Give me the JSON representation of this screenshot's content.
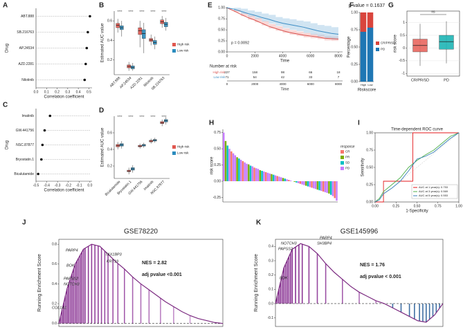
{
  "chart_data": [
    {
      "panel": "A",
      "type": "lollipop",
      "categories": [
        "ABT.888",
        "SB.216763",
        "AP.24534",
        "AZD.2281",
        "Nilotinib"
      ],
      "values": [
        0.51,
        0.49,
        0.48,
        0.47,
        0.46
      ],
      "xlim": [
        0,
        0.53
      ],
      "xticks": [
        {
          "value": 0,
          "label": "0.0"
        },
        0.1,
        0.2,
        0.3,
        0.4,
        0.5
      ],
      "xlabel": "Correlation coefficient",
      "ylabel": "Drug"
    },
    {
      "panel": "B",
      "type": "box",
      "categories": [
        "ABT.888",
        "AP.24534",
        "AZD.2281",
        "Nilotinib",
        "SB.216763"
      ],
      "series": [
        {
          "name": "High risk",
          "color": "#e0574f",
          "boxes": [
            [
              0.48,
              0.53,
              0.555,
              0.575,
              0.62
            ],
            [
              0.09,
              0.12,
              0.135,
              0.15,
              0.18
            ],
            [
              0.33,
              0.46,
              0.5,
              0.53,
              0.6
            ],
            [
              0.35,
              0.39,
              0.405,
              0.42,
              0.46
            ],
            [
              0.53,
              0.57,
              0.59,
              0.61,
              0.65
            ]
          ]
        },
        {
          "name": "Low risk",
          "color": "#2b8cbe",
          "boxes": [
            [
              0.44,
              0.51,
              0.53,
              0.55,
              0.6
            ],
            [
              0.09,
              0.11,
              0.125,
              0.14,
              0.17
            ],
            [
              0.27,
              0.42,
              0.47,
              0.51,
              0.58
            ],
            [
              0.31,
              0.36,
              0.38,
              0.4,
              0.44
            ],
            [
              0.5,
              0.54,
              0.565,
              0.585,
              0.63
            ]
          ]
        }
      ],
      "ylim": [
        0.05,
        0.7
      ],
      "yticks": [
        0.2,
        0.4,
        0.6
      ],
      "ylabel": "Estimated AUC value",
      "annotations": [
        "****",
        "****",
        "****",
        "****",
        "****"
      ]
    },
    {
      "panel": "C",
      "type": "lollipop",
      "categories": [
        "Imatinib",
        "GW.441756",
        "NSC.87877",
        "Bryostatin.1",
        "Bicalutamide"
      ],
      "values": [
        -0.37,
        -0.42,
        -0.44,
        -0.45,
        -0.48
      ],
      "xlim": [
        -0.5,
        0.02
      ],
      "xticks": [
        -0.5,
        -0.4,
        -0.3,
        -0.2,
        -0.1,
        {
          "value": 0,
          "label": "0.0"
        }
      ],
      "xlabel": "Correlation coefficient",
      "ylabel": "Drug"
    },
    {
      "panel": "D",
      "type": "box",
      "categories": [
        "Bicalutamide",
        "Bryostatin.1",
        "GW.441756",
        "Imatinib",
        "NSC.87877"
      ],
      "series": [
        {
          "name": "High risk",
          "color": "#e0574f",
          "boxes": [
            [
              0.4,
              0.43,
              0.445,
              0.46,
              0.49
            ],
            [
              0.1,
              0.13,
              0.14,
              0.15,
              0.18
            ],
            [
              0.41,
              0.43,
              0.44,
              0.45,
              0.47
            ],
            [
              0.47,
              0.49,
              0.5,
              0.51,
              0.53
            ],
            [
              0.68,
              0.71,
              0.72,
              0.735,
              0.76
            ]
          ]
        },
        {
          "name": "Low risk",
          "color": "#2b8cbe",
          "boxes": [
            [
              0.41,
              0.44,
              0.455,
              0.47,
              0.5
            ],
            [
              0.12,
              0.15,
              0.165,
              0.18,
              0.21
            ],
            [
              0.42,
              0.44,
              0.45,
              0.46,
              0.48
            ],
            [
              0.48,
              0.5,
              0.51,
              0.52,
              0.54
            ],
            [
              0.7,
              0.73,
              0.745,
              0.76,
              0.79
            ]
          ]
        }
      ],
      "ylim": [
        0.05,
        0.8
      ],
      "yticks": [
        0.2,
        0.4,
        0.6
      ],
      "ylabel": "Estimated AUC value",
      "annotations": [
        "****",
        "****",
        "****",
        "****",
        "****"
      ]
    },
    {
      "panel": "E",
      "type": "km",
      "x": [
        0,
        500,
        1000,
        1500,
        2000,
        2500,
        3000,
        3500,
        4000,
        4500,
        5000,
        5500,
        6000,
        6500,
        7000,
        7500,
        8000
      ],
      "series": [
        {
          "name": "High risk",
          "color": "#d9534f",
          "band": "#f4b6b4",
          "values": [
            1,
            0.93,
            0.85,
            0.78,
            0.72,
            0.65,
            0.58,
            0.53,
            0.48,
            0.44,
            0.41,
            0.38,
            0.36,
            0.34,
            0.31,
            0.3,
            0.29
          ],
          "lower": [
            1,
            0.9,
            0.81,
            0.73,
            0.67,
            0.6,
            0.53,
            0.48,
            0.43,
            0.39,
            0.36,
            0.33,
            0.31,
            0.29,
            0.26,
            0.25,
            0.24
          ],
          "upper": [
            1,
            0.96,
            0.89,
            0.83,
            0.77,
            0.7,
            0.63,
            0.58,
            0.53,
            0.49,
            0.46,
            0.43,
            0.41,
            0.39,
            0.36,
            0.35,
            0.34
          ]
        },
        {
          "name": "Low risk",
          "color": "#3d8dc4",
          "band": "#a9cde8",
          "values": [
            1,
            0.97,
            0.92,
            0.87,
            0.83,
            0.78,
            0.74,
            0.69,
            0.65,
            0.62,
            0.59,
            0.56,
            0.52,
            0.48,
            0.45,
            0.42,
            0.4
          ],
          "lower": [
            1,
            0.93,
            0.86,
            0.8,
            0.75,
            0.69,
            0.64,
            0.59,
            0.54,
            0.5,
            0.47,
            0.43,
            0.39,
            0.35,
            0.31,
            0.28,
            0.25
          ],
          "upper": [
            1,
            1,
            0.98,
            0.94,
            0.91,
            0.87,
            0.84,
            0.79,
            0.76,
            0.74,
            0.71,
            0.69,
            0.65,
            0.61,
            0.59,
            0.56,
            0.55
          ]
        }
      ],
      "xlim": [
        0,
        8300
      ],
      "ylim": [
        0,
        1.02
      ],
      "xticks": [
        0,
        2000,
        4000,
        6000,
        8000
      ],
      "yticks": [
        {
          "value": 0,
          "label": "0.00"
        },
        0.25,
        {
          "value": 0.5,
          "label": "0.50"
        },
        0.75,
        {
          "value": 1,
          "label": "1.00"
        }
      ],
      "xlabel": "Time",
      "annotation": "p = 0.0092",
      "risk_table": {
        "title": "Number at risk",
        "rows": [
          {
            "name": "High risk",
            "counts": [
              "227",
              "158",
              "98",
              "66",
              "18"
            ]
          },
          {
            "name": "Low risk",
            "counts": [
              "71",
              "54",
              "42",
              "33",
              "7"
            ]
          }
        ]
      }
    },
    {
      "panel": "F",
      "type": "stacked",
      "title": "p-value = 0.1637",
      "categories": [
        "High",
        "Low"
      ],
      "series": [
        {
          "name": "CR/PR/SD",
          "color": "#d9453d",
          "values": [
            0.28,
            0.22
          ]
        },
        {
          "name": "PD",
          "color": "#1f77b4",
          "values": [
            0.72,
            0.78
          ]
        }
      ],
      "ylim": [
        0,
        1
      ],
      "yticks": [
        {
          "value": 0,
          "label": "0.00"
        },
        0.25,
        {
          "value": 0.5,
          "label": "0.50"
        },
        0.75,
        {
          "value": 1,
          "label": "1.00"
        }
      ],
      "xlabel": "Riskscore",
      "ylabel": "Percentage"
    },
    {
      "panel": "G",
      "type": "box",
      "categories": [
        "CR/PR/SD",
        "PD"
      ],
      "colors": [
        "#e8675f",
        "#1fb5b5"
      ],
      "boxes": [
        [
          -0.7,
          -0.15,
          0.1,
          0.35,
          0.95
        ],
        [
          -0.6,
          -0.05,
          0.25,
          0.5,
          1.05
        ]
      ],
      "ylim": [
        -1.1,
        1.45
      ],
      "yticks": [
        -1,
        -0.5,
        0,
        0.5,
        1
      ],
      "ylabel": "risk score",
      "annotations": [
        "ns"
      ]
    },
    {
      "panel": "H",
      "type": "bar",
      "values": [
        0.75,
        0.62,
        0.55,
        0.5,
        0.46,
        0.43,
        0.4,
        0.37,
        0.35,
        0.33,
        0.31,
        0.29,
        0.27,
        0.26,
        0.24,
        0.23,
        0.21,
        0.2,
        0.19,
        0.17,
        0.16,
        0.15,
        0.14,
        0.13,
        0.12,
        0.11,
        0.1,
        0.09,
        0.08,
        0.07,
        0.06,
        0.05,
        0.04,
        0.03,
        0.02,
        0.01,
        0,
        -0.01,
        -0.02,
        -0.03,
        -0.04,
        -0.05,
        -0.06,
        -0.07,
        -0.08,
        -0.09,
        -0.1,
        -0.11,
        -0.12,
        -0.13,
        -0.14,
        -0.15,
        -0.16,
        -0.17,
        -0.18,
        -0.19,
        -0.21,
        -0.23,
        -0.26,
        -0.3
      ],
      "response": [
        "PD",
        "PR",
        "SD",
        "PD",
        "CR",
        "PD",
        "PD",
        "PR",
        "SD",
        "PD",
        "CR",
        "PD",
        "PD",
        "PR",
        "SD",
        "PD",
        "CR",
        "PD",
        "PD",
        "PR",
        "SD",
        "PD",
        "CR",
        "PD",
        "PD",
        "PR",
        "SD",
        "PD",
        "CR",
        "PD",
        "PD",
        "PR",
        "SD",
        "PD",
        "CR",
        "PD",
        "PD",
        "PR",
        "SD",
        "PD",
        "CR",
        "PD",
        "PD",
        "PR",
        "SD",
        "PD",
        "CR",
        "PD",
        "PD",
        "PR",
        "SD",
        "PD",
        "CR",
        "PD",
        "PD",
        "PR",
        "SD",
        "PD",
        "CR",
        "PD"
      ],
      "legend_title": "response",
      "responses": [
        "CR",
        "PR",
        "SD",
        "PD"
      ],
      "colors": [
        "#f8766d",
        "#7cae00",
        "#00bfc4",
        "#c77cff"
      ],
      "ylim": [
        -0.32,
        0.8
      ],
      "yticks": [
        -0.25,
        {
          "value": 0,
          "label": "0.00"
        },
        0.25,
        {
          "value": 0.5,
          "label": "0.50"
        },
        0.75
      ],
      "ylabel": "risk score"
    },
    {
      "panel": "I",
      "type": "roc",
      "title": "Time-dependent ROC curve",
      "xlabel": "1-Specificity",
      "ylabel": "Sensitivity",
      "xlim": [
        0,
        1
      ],
      "ylim": [
        0,
        1
      ],
      "xticks": [
        {
          "value": 0,
          "label": "0.00"
        },
        0.25,
        {
          "value": 0.5,
          "label": "0.50"
        },
        0.75,
        {
          "value": 1,
          "label": "1.00"
        }
      ],
      "yticks": [
        {
          "value": 0,
          "label": "0.00"
        },
        0.25,
        {
          "value": 0.5,
          "label": "0.50"
        },
        0.75,
        {
          "value": 1,
          "label": "1.00"
        }
      ],
      "series": [
        {
          "name": "AUC at 1 year(s): 0.753",
          "color": "#e41a1c",
          "x": [
            0,
            0.1,
            0.1,
            0.45,
            0.45,
            1
          ],
          "y": [
            0,
            0,
            0.3,
            0.3,
            1,
            1
          ]
        },
        {
          "name": "AUC at 3 year(s): 0.569",
          "color": "#4daf4a",
          "x": [
            0,
            0.05,
            0.1,
            0.2,
            0.3,
            0.4,
            0.5,
            0.6,
            0.7,
            0.8,
            0.9,
            1
          ],
          "y": [
            0,
            0.05,
            0.15,
            0.25,
            0.35,
            0.5,
            0.6,
            0.68,
            0.75,
            0.85,
            0.95,
            1
          ]
        },
        {
          "name": "AUC at 5 year(s): 0.553",
          "color": "#377eb8",
          "x": [
            0,
            0.05,
            0.1,
            0.2,
            0.3,
            0.4,
            0.5,
            0.6,
            0.7,
            0.8,
            0.9,
            1
          ],
          "y": [
            0,
            0.03,
            0.12,
            0.2,
            0.3,
            0.45,
            0.62,
            0.66,
            0.72,
            0.82,
            0.92,
            1
          ]
        }
      ]
    },
    {
      "panel": "J",
      "type": "gsea",
      "title": "GSE78220",
      "ylabel": "Running Enrichment Score",
      "nes": "NES = 2.82",
      "padj": "adj pvalue <0.001",
      "genes": [
        "PARP4",
        "TAX1BP3",
        "BOK",
        "KRT19",
        "PAPSS2",
        "NOTCH3",
        "COL1A1"
      ],
      "x": [
        0,
        5,
        10,
        15,
        20,
        25,
        30,
        35,
        40,
        45,
        50,
        55,
        60,
        65,
        70,
        75,
        80,
        85,
        90,
        95,
        100
      ],
      "values": [
        0,
        0.35,
        0.6,
        0.75,
        0.8,
        0.78,
        0.7,
        0.62,
        0.55,
        0.47,
        0.4,
        0.34,
        0.28,
        0.22,
        0.17,
        0.12,
        0.08,
        0.05,
        0.03,
        0.01,
        0
      ],
      "hits": [
        1,
        2,
        3,
        4,
        5,
        6,
        7,
        8,
        9,
        10,
        11,
        12,
        13,
        14,
        15,
        16,
        18,
        20,
        22,
        24,
        26,
        28,
        30,
        33,
        36,
        40,
        45,
        50,
        55,
        62,
        70,
        80
      ],
      "xlim": [
        0,
        100
      ],
      "ylim": [
        -0.03,
        0.85
      ],
      "yticks": [
        {
          "value": 0,
          "label": "0.0"
        },
        0.2,
        0.4,
        0.6,
        0.8
      ]
    },
    {
      "panel": "K",
      "type": "gsea",
      "title": "GSE145996",
      "ylabel": "Running Enrichment Score",
      "nes": "NES = 1.76",
      "padj": "adj pvalue < 0.001",
      "genes": [
        "PARP4",
        "NOTCH3",
        "SH3BP4",
        "PAPSS2",
        "BOK"
      ],
      "x": [
        0,
        5,
        10,
        15,
        20,
        25,
        30,
        35,
        40,
        45,
        50,
        55,
        60,
        65,
        70,
        75,
        80,
        85,
        90,
        95,
        100
      ],
      "values": [
        0,
        0.25,
        0.38,
        0.42,
        0.4,
        0.35,
        0.28,
        0.22,
        0.17,
        0.12,
        0.08,
        0.05,
        0.02,
        0,
        -0.03,
        -0.06,
        -0.09,
        -0.12,
        -0.13,
        -0.08,
        0
      ],
      "hits": [
        1,
        2,
        3,
        4,
        5,
        6,
        7,
        8,
        9,
        10,
        12,
        14,
        16,
        20,
        25,
        30,
        40,
        50,
        60,
        70,
        75,
        80,
        83,
        86,
        88,
        90,
        92,
        94,
        96,
        98
      ],
      "xlim": [
        0,
        100
      ],
      "ylim": [
        -0.16,
        0.45
      ],
      "yticks": [
        -0.1,
        {
          "value": 0,
          "label": "0.0"
        },
        0.1,
        0.2,
        0.3,
        0.4
      ]
    }
  ]
}
